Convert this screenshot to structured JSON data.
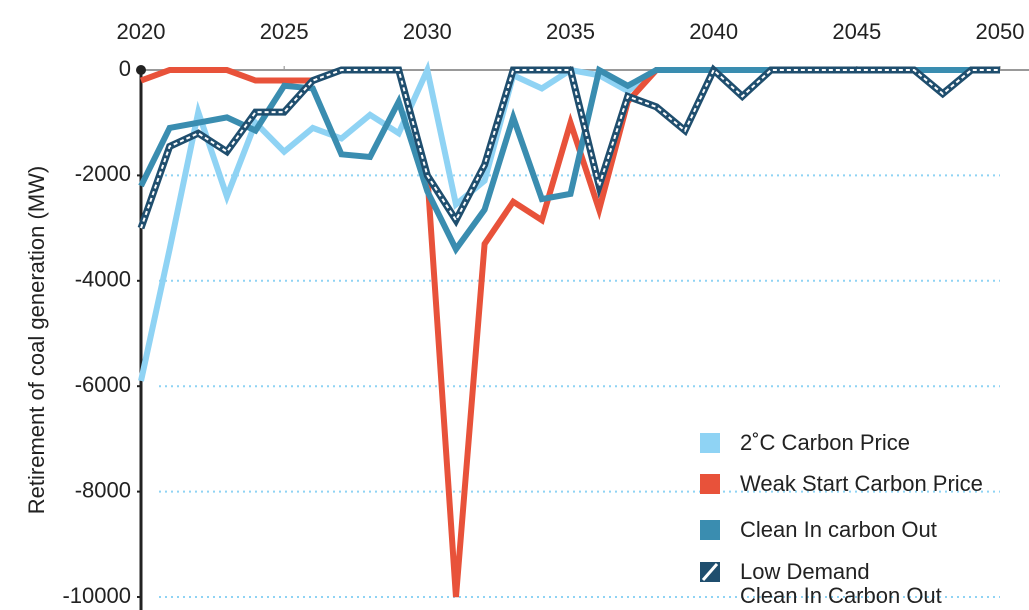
{
  "chart_data": {
    "type": "line",
    "y_label": "Retirement of coal generation (MW)",
    "x": [
      2020,
      2021,
      2022,
      2023,
      2024,
      2025,
      2026,
      2027,
      2028,
      2029,
      2030,
      2031,
      2032,
      2033,
      2034,
      2035,
      2036,
      2037,
      2038,
      2039,
      2040,
      2041,
      2042,
      2043,
      2044,
      2045,
      2046,
      2047,
      2048,
      2049,
      2050
    ],
    "xlim": [
      2020,
      2050
    ],
    "xticks": [
      2020,
      2025,
      2030,
      2035,
      2040,
      2045,
      2050
    ],
    "ylim": [
      -10000,
      0
    ],
    "yticks": [
      0,
      -2000,
      -4000,
      -6000,
      -8000,
      -10000
    ],
    "grid": true,
    "series": [
      {
        "name": "2˚C Carbon Price",
        "color": "#8fd3f4",
        "values": [
          -5900,
          -3400,
          -800,
          -2400,
          -1000,
          -1550,
          -1100,
          -1300,
          -850,
          -1200,
          0,
          -2550,
          -2100,
          -100,
          -350,
          0,
          -100,
          -400,
          0,
          0,
          0,
          0,
          0,
          0,
          0,
          0,
          0,
          0,
          0,
          0,
          0
        ]
      },
      {
        "name": "Weak Start Carbon Price",
        "color": "#e8523a",
        "values": [
          -200,
          0,
          0,
          0,
          -200,
          -200,
          -200,
          0,
          0,
          0,
          -2000,
          -10000,
          -3300,
          -2500,
          -2850,
          -1000,
          -2650,
          -600,
          0,
          0,
          0,
          0,
          0,
          0,
          0,
          0,
          0,
          0,
          0,
          0,
          0
        ]
      },
      {
        "name": "Clean In carbon Out",
        "color": "#3a8db0",
        "values": [
          -2200,
          -1100,
          -1000,
          -900,
          -1150,
          -300,
          -350,
          -1600,
          -1650,
          -600,
          -2300,
          -3400,
          -2650,
          -900,
          -2450,
          -2350,
          0,
          -300,
          0,
          0,
          0,
          0,
          0,
          0,
          0,
          0,
          0,
          0,
          0,
          0,
          0
        ]
      },
      {
        "name": "Low Demand\nClean In Carbon Out",
        "color": "#1f4e6e",
        "style": "hatched",
        "values": [
          -3000,
          -1450,
          -1200,
          -1550,
          -800,
          -800,
          -200,
          0,
          0,
          0,
          -2000,
          -2850,
          -1800,
          0,
          0,
          0,
          -2200,
          -500,
          -700,
          -1150,
          0,
          -500,
          0,
          0,
          0,
          0,
          0,
          0,
          -450,
          0,
          0
        ]
      }
    ]
  }
}
